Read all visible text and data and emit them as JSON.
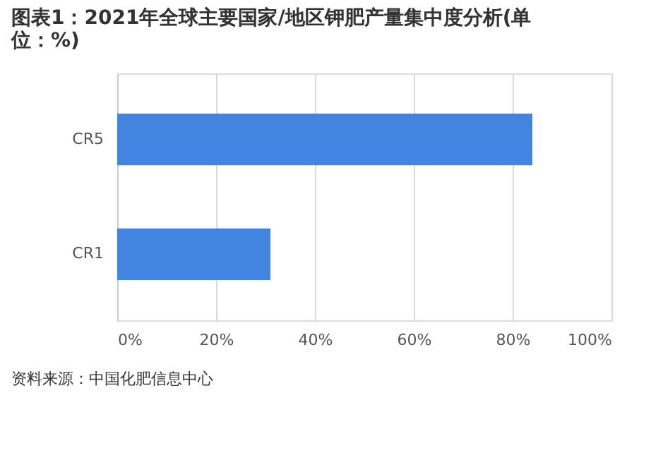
{
  "chart_data": {
    "type": "bar",
    "orientation": "horizontal",
    "title": "图表1：2021年全球主要国家/地区钾肥产量集中度分析(单位：%)",
    "categories": [
      "CR5",
      "CR1"
    ],
    "series": [
      {
        "color": "#4285e1",
        "values": [
          84,
          31
        ]
      }
    ],
    "xlim": [
      0,
      100
    ],
    "xticks": [
      {
        "value": 0,
        "label": "0%"
      },
      {
        "value": 20,
        "label": "20%"
      },
      {
        "value": 40,
        "label": "40%"
      },
      {
        "value": 60,
        "label": "60%"
      },
      {
        "value": 80,
        "label": "80%"
      },
      {
        "value": 100,
        "label": "100%"
      }
    ],
    "grid": "x",
    "annotations": [
      "资料来源：中国化肥信息中心"
    ]
  }
}
